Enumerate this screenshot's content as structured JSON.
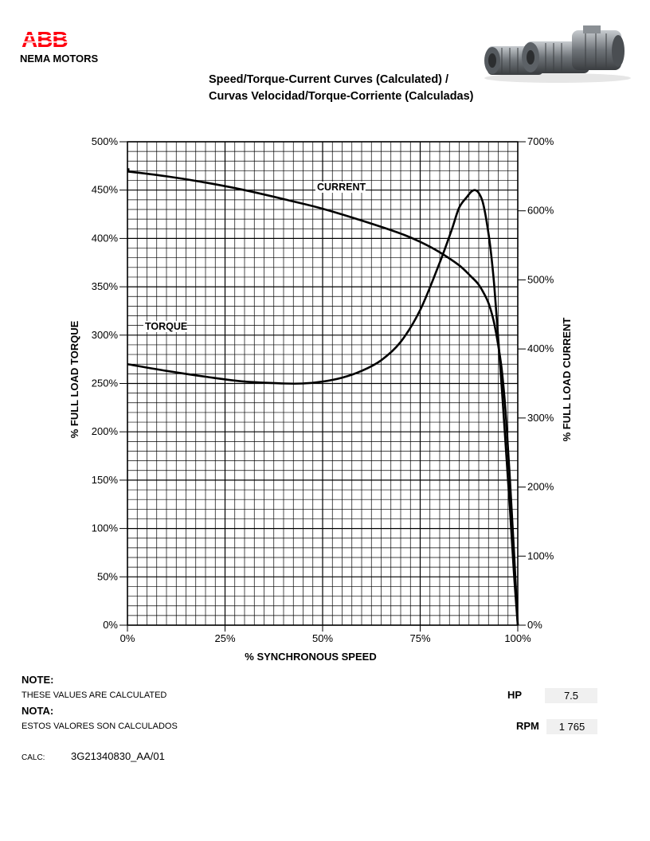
{
  "header": {
    "brand": "ABB",
    "subtitle": "NEMA MOTORS",
    "title_line1": "Speed/Torque-Current Curves (Calculated) /",
    "title_line2": "Curvas Velocidad/Torque-Corriente (Calculadas)"
  },
  "chart_data": {
    "type": "line",
    "xlabel": "% SYNCHRONOUS SPEED",
    "ylabel_left": "% FULL LOAD TORQUE",
    "ylabel_right": "% FULL LOAD CURRENT",
    "xlim": [
      0,
      100
    ],
    "ylim_left": [
      0,
      500
    ],
    "ylim_right": [
      0,
      700
    ],
    "x_ticks": [
      "0%",
      "25%",
      "50%",
      "75%",
      "100%"
    ],
    "y_left_ticks": [
      "0%",
      "50%",
      "100%",
      "150%",
      "200%",
      "250%",
      "300%",
      "350%",
      "400%",
      "450%",
      "500%"
    ],
    "y_right_ticks": [
      "0%",
      "100%",
      "200%",
      "300%",
      "400%",
      "500%",
      "600%",
      "700%"
    ],
    "grid": true,
    "series": [
      {
        "name": "TORQUE",
        "axis": "left",
        "x": [
          0,
          10,
          20,
          30,
          40,
          45,
          50,
          55,
          60,
          65,
          70,
          75,
          80,
          83,
          85,
          87,
          88,
          89,
          90,
          91,
          92,
          93,
          94,
          95,
          96,
          97,
          98,
          99,
          100
        ],
        "y": [
          270,
          263,
          257,
          252,
          250,
          250,
          252,
          256,
          263,
          274,
          293,
          326,
          375,
          408,
          432,
          443,
          448,
          450,
          447,
          438,
          418,
          390,
          350,
          296,
          240,
          180,
          120,
          55,
          0
        ]
      },
      {
        "name": "CURRENT",
        "axis": "right",
        "x": [
          0,
          10,
          20,
          30,
          40,
          50,
          60,
          70,
          75,
          80,
          85,
          88,
          90,
          92,
          93,
          94,
          95,
          96,
          97,
          98,
          99,
          100
        ],
        "y": [
          657,
          650,
          641,
          630,
          617,
          603,
          586,
          567,
          555,
          540,
          521,
          505,
          493,
          473,
          458,
          436,
          405,
          365,
          300,
          210,
          110,
          0
        ]
      }
    ],
    "annotations": [
      "CURRENT",
      "TORQUE"
    ]
  },
  "notes": {
    "note_label": "NOTE:",
    "note_text": "THESE VALUES ARE CALCULATED",
    "nota_label": "NOTA:",
    "nota_text": "ESTOS VALORES SON CALCULADOS"
  },
  "specs": {
    "hp_label": "HP",
    "hp_value": "7.5",
    "rpm_label": "RPM",
    "rpm_value": "1 765"
  },
  "calc": {
    "label": "CALC:",
    "value": "3G21340830_AA/01"
  },
  "colors": {
    "brand": "#ff000f",
    "curve": "#000000",
    "grid": "#000000"
  }
}
